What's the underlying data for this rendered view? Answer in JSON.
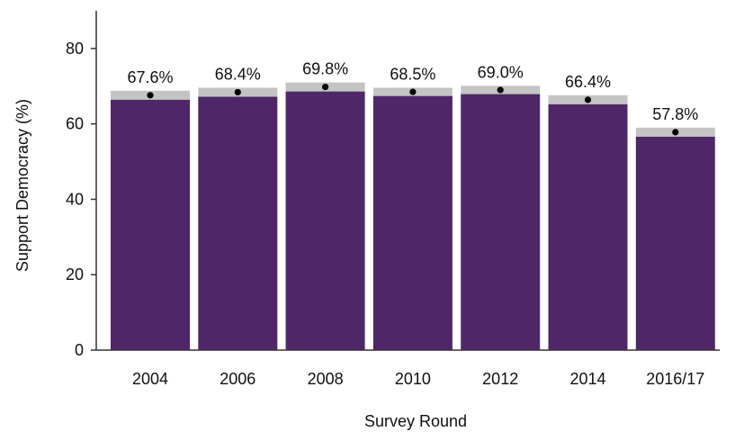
{
  "chart_data": {
    "type": "bar",
    "title": "",
    "xlabel": "Survey Round",
    "ylabel": "Support Democracy (%)",
    "ylim": [
      0,
      90
    ],
    "yticks": [
      0,
      20,
      40,
      60,
      80
    ],
    "categories": [
      "2004",
      "2006",
      "2008",
      "2010",
      "2012",
      "2014",
      "2016/17"
    ],
    "values": [
      67.6,
      68.4,
      69.8,
      68.5,
      69.0,
      66.4,
      57.8
    ],
    "value_labels": [
      "67.6%",
      "68.4%",
      "69.8%",
      "68.5%",
      "69.0%",
      "66.4%",
      "57.8%"
    ],
    "error_upper": [
      68.8,
      69.6,
      71.0,
      69.6,
      70.1,
      67.6,
      59.0
    ],
    "error_lower": [
      66.4,
      67.2,
      68.6,
      67.4,
      67.9,
      65.2,
      56.6
    ],
    "grid": false,
    "legend": "none",
    "colors": {
      "bar": "#4f2768",
      "error_band": "#c4c4c4",
      "point": "#000000",
      "axis": "#333333"
    }
  }
}
